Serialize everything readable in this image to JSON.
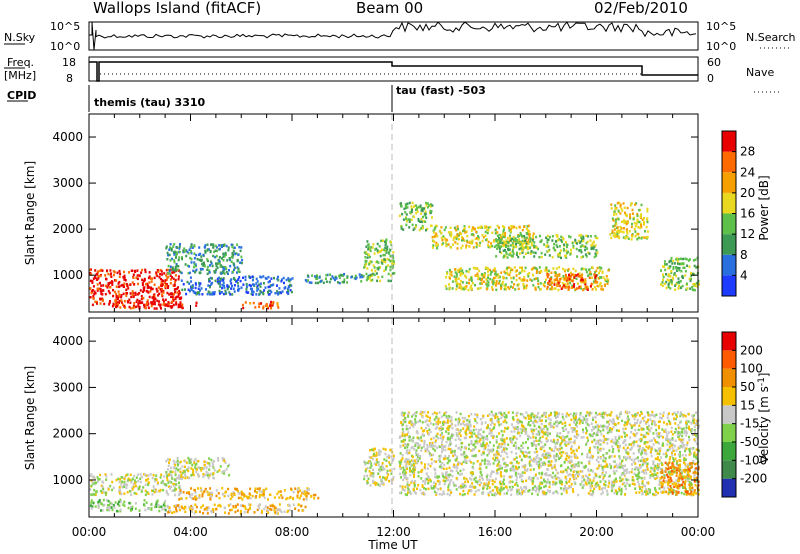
{
  "header": {
    "site_title": "Wallops Island (fitACF)",
    "beam": "Beam 00",
    "date": "02/Feb/2010"
  },
  "status_panels": {
    "nsky_label": "N.Sky",
    "nsky_ticks": [
      "10^5",
      "10^0"
    ],
    "nsearch_label": "N.Search",
    "nsearch_ticks": [
      "10^5",
      "10^0"
    ],
    "freq_label": "Freq.",
    "freq_unit": "[MHz]",
    "freq_ticks": [
      "18",
      "8"
    ],
    "nave_label": "Nave",
    "nave_ticks": [
      "60",
      "0"
    ],
    "cpid_label": "CPID",
    "cpid_segments": [
      "themis (tau) 3310",
      "tau (fast) -503"
    ]
  },
  "chart_data": [
    {
      "type": "heatmap",
      "name": "power",
      "ylabel": "Slant Range [km]",
      "yticks": [
        "1000",
        "2000",
        "3000",
        "4000"
      ],
      "ylim": [
        200,
        4500
      ],
      "xlim_hours": [
        0,
        24
      ],
      "colorbar": {
        "label": "Power [dB]",
        "ticks": [
          "4",
          "8",
          "12",
          "16",
          "20",
          "24",
          "28"
        ],
        "colors": [
          "#1e3cff",
          "#2a6fe0",
          "#3c9a55",
          "#5cc04a",
          "#e8d820",
          "#f5a000",
          "#ff6a00",
          "#e80000"
        ]
      },
      "regions": [
        {
          "t": [
            0.0,
            3.6
          ],
          "r": [
            350,
            1150
          ],
          "level": 7
        },
        {
          "t": [
            1.0,
            4.2
          ],
          "r": [
            300,
            450
          ],
          "level": 7
        },
        {
          "t": [
            3.0,
            6.0
          ],
          "r": [
            1050,
            1700
          ],
          "level": 2
        },
        {
          "t": [
            3.6,
            8.0
          ],
          "r": [
            600,
            1000
          ],
          "level": 1
        },
        {
          "t": [
            6.0,
            7.5
          ],
          "r": [
            300,
            450
          ],
          "level": 6
        },
        {
          "t": [
            8.5,
            11.0
          ],
          "r": [
            850,
            1050
          ],
          "level": 2
        },
        {
          "t": [
            10.8,
            12.0
          ],
          "r": [
            900,
            1800
          ],
          "level": 3
        },
        {
          "t": [
            12.2,
            13.5
          ],
          "r": [
            2000,
            2600
          ],
          "level": 3
        },
        {
          "t": [
            13.5,
            17.5
          ],
          "r": [
            1600,
            2100
          ],
          "level": 4
        },
        {
          "t": [
            16.0,
            20.0
          ],
          "r": [
            1400,
            1900
          ],
          "level": 3
        },
        {
          "t": [
            14.0,
            20.5
          ],
          "r": [
            700,
            1200
          ],
          "level": 4
        },
        {
          "t": [
            18.0,
            20.0
          ],
          "r": [
            700,
            1050
          ],
          "level": 6
        },
        {
          "t": [
            20.5,
            22.0
          ],
          "r": [
            1800,
            2600
          ],
          "level": 4
        },
        {
          "t": [
            22.5,
            24.0
          ],
          "r": [
            700,
            1400
          ],
          "level": 3
        }
      ]
    },
    {
      "type": "heatmap",
      "name": "velocity",
      "ylabel": "Slant Range [km]",
      "yticks": [
        "1000",
        "2000",
        "3000",
        "4000"
      ],
      "ylim": [
        200,
        4500
      ],
      "xlabel": "Time UT",
      "xticks": [
        "00:00",
        "04:00",
        "08:00",
        "12:00",
        "16:00",
        "20:00",
        "00:00"
      ],
      "xlim_hours": [
        0,
        24
      ],
      "colorbar": {
        "label": "Velocity [m s^-1]",
        "ticks": [
          "200",
          "100",
          "50",
          "15",
          "-15",
          "-50",
          "-100",
          "-200"
        ],
        "colors": [
          "#2030b0",
          "#3f8a4a",
          "#3ca83c",
          "#7fd04a",
          "#c8c8c8",
          "#f5c000",
          "#f09000",
          "#ff5a00",
          "#e80000"
        ]
      },
      "regions": [
        {
          "t": [
            0.0,
            3.6
          ],
          "r": [
            700,
            1150
          ],
          "level": 4
        },
        {
          "t": [
            0.0,
            3.0
          ],
          "r": [
            350,
            600
          ],
          "level": 3
        },
        {
          "t": [
            3.0,
            8.5
          ],
          "r": [
            300,
            500
          ],
          "level": 5
        },
        {
          "t": [
            3.5,
            9.0
          ],
          "r": [
            600,
            850
          ],
          "level": 5
        },
        {
          "t": [
            3.0,
            5.5
          ],
          "r": [
            1050,
            1500
          ],
          "level": 4
        },
        {
          "t": [
            10.8,
            12.0
          ],
          "r": [
            900,
            1700
          ],
          "level": 4
        },
        {
          "t": [
            12.2,
            24.0
          ],
          "r": [
            700,
            2500
          ],
          "level": 4
        },
        {
          "t": [
            22.5,
            24.0
          ],
          "r": [
            700,
            1400
          ],
          "level": 6
        }
      ]
    }
  ]
}
